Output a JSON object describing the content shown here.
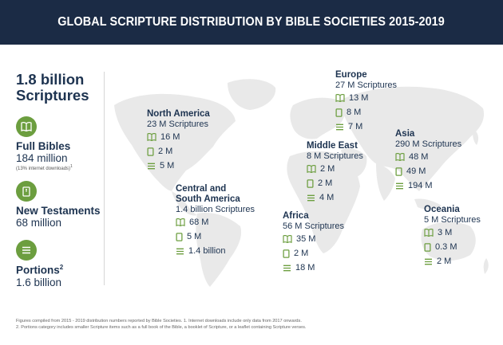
{
  "title": "GLOBAL SCRIPTURE DISTRIBUTION BY BIBLE SOCIETIES 2015-2019",
  "total": {
    "line1": "1.8 billion",
    "line2": "Scriptures"
  },
  "categories": [
    {
      "label": "Full Bibles",
      "value": "184 million",
      "note": "(13% internet downloads)",
      "note_sup": "1"
    },
    {
      "label": "New Testaments",
      "value": "68 million"
    },
    {
      "label": "Portions",
      "label_sup": "2",
      "value": "1.6 billion"
    }
  ],
  "regions": {
    "north_america": {
      "name": "North America",
      "total": "23 M Scriptures",
      "bibles": "16 M",
      "nt": "2 M",
      "portions": "5 M"
    },
    "central_south_america": {
      "name1": "Central and",
      "name2": "South America",
      "total": "1.4 billion Scriptures",
      "bibles": "68 M",
      "nt": "5 M",
      "portions": "1.4 billion"
    },
    "europe": {
      "name": "Europe",
      "total": "27 M Scriptures",
      "bibles": "13 M",
      "nt": "8 M",
      "portions": "7 M"
    },
    "middle_east": {
      "name": "Middle East",
      "total": "8 M Scriptures",
      "bibles": "2 M",
      "nt": "2 M",
      "portions": "4 M"
    },
    "africa": {
      "name": "Africa",
      "total": "56 M Scriptures",
      "bibles": "35 M",
      "nt": "2 M",
      "portions": "18 M"
    },
    "asia": {
      "name": "Asia",
      "total": "290 M Scriptures",
      "bibles": "48 M",
      "nt": "49 M",
      "portions": "194 M"
    },
    "oceania": {
      "name": "Oceania",
      "total": "5 M Scriptures",
      "bibles": "3 M",
      "nt": "0.3 M",
      "portions": "2 M"
    }
  },
  "footnotes": [
    "Figures compiled from 2015 - 2019 distribution numbers reported by Bible Societies.  1. Internet downloads include only data from 2017 onwards.",
    "2. Portions category includes smaller Scripture items such as a full book of the Bible, a booklet of Scripture, or a leaflet containing Scripture verses."
  ],
  "colors": {
    "banner": "#1b2b45",
    "accent": "#6c9e3f",
    "text": "#1d3350",
    "map": "#e9e9e9"
  },
  "icons": {
    "bible": "open-book-icon",
    "new_testament": "book-icon",
    "portions": "lines-icon"
  }
}
